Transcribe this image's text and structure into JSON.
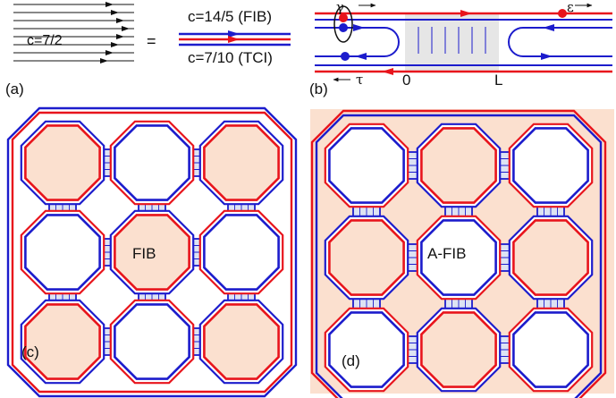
{
  "panel_a": {
    "label": "(a)",
    "left_text": "c=7/2",
    "equals": "=",
    "fib_text": "c=14/5  (FIB)",
    "tci_text": "c=7/10  (TCI)"
  },
  "panel_b": {
    "label": "(b)",
    "gamma": "γ",
    "epsilon": "ε",
    "tau": "τ",
    "zero": "0",
    "L": "L"
  },
  "panel_c": {
    "label": "(c)",
    "center_text": "FIB"
  },
  "panel_d": {
    "label": "(d)",
    "center_text": "A-FIB"
  },
  "colors": {
    "red": "#e8141c",
    "blue": "#1c1ccc",
    "peach": "#fbe0cf",
    "gray": "#e6e6e6",
    "bridge": "#dde3f3"
  }
}
